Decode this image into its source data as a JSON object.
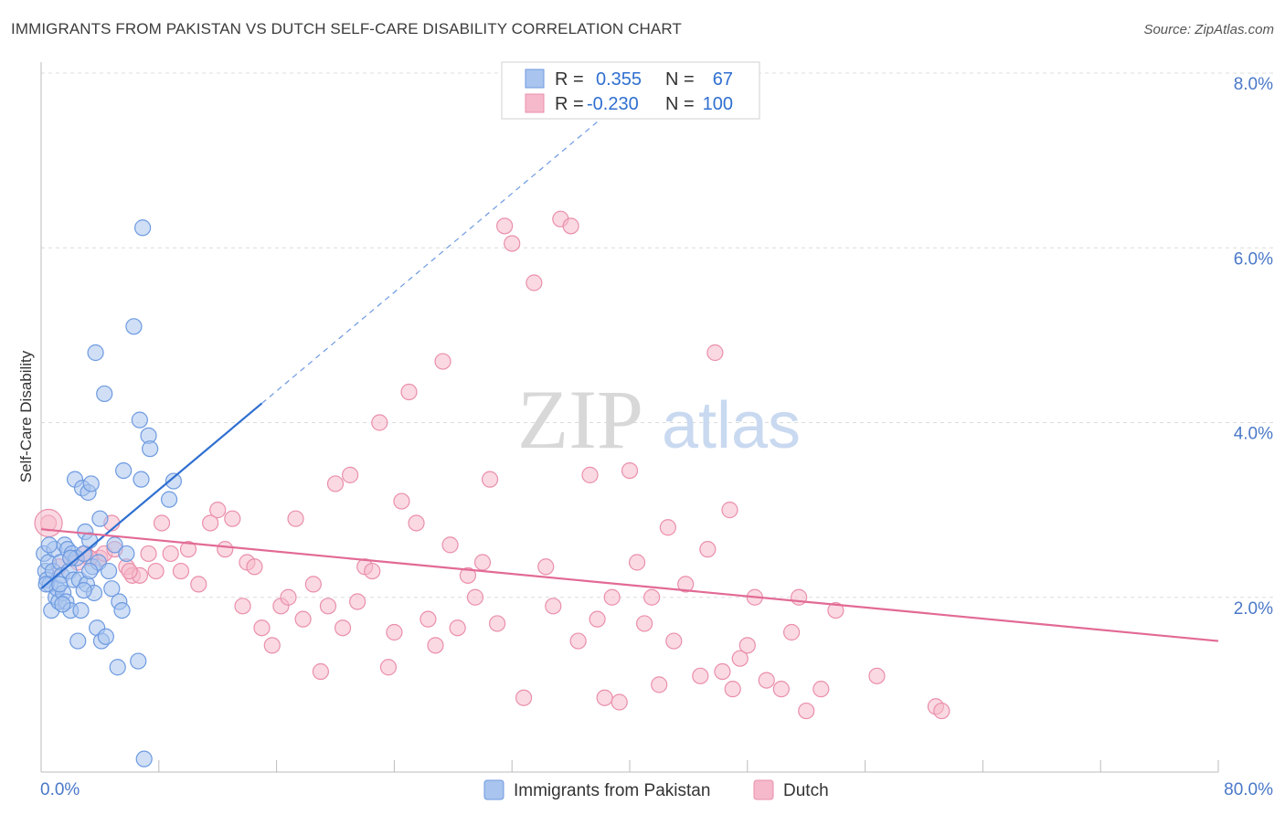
{
  "title": "IMMIGRANTS FROM PAKISTAN VS DUTCH SELF-CARE DISABILITY CORRELATION CHART",
  "source": "Source: ZipAtlas.com",
  "watermark": {
    "zip": "ZIP",
    "atlas": "atlas"
  },
  "colors": {
    "blue_fill": "#a9c4ee",
    "blue_stroke": "#6d9ae0",
    "blue_line": "#2f6fd0",
    "pink_fill": "#f5b9cb",
    "pink_stroke": "#ea8fab",
    "pink_line": "#e26a95",
    "grid": "#dcdcdc",
    "tick_label": "#4a78c8"
  },
  "legend": {
    "rows": [
      {
        "r_label": "R =",
        "r_value": "0.355",
        "n_label": "N =",
        "n_value": "67"
      },
      {
        "r_label": "R =",
        "r_value": "-0.230",
        "n_label": "N =",
        "n_value": "100"
      }
    ]
  },
  "chart_data": {
    "type": "scatter",
    "xlabel": "",
    "ylabel": "Self-Care Disability",
    "xlim": [
      0,
      80
    ],
    "ylim": [
      0,
      8
    ],
    "x_tick_labels": [
      "0.0%",
      "80.0%"
    ],
    "y_ticks": [
      2,
      4,
      6,
      8
    ],
    "y_tick_labels": [
      "2.0%",
      "4.0%",
      "6.0%",
      "8.0%"
    ],
    "grid": true,
    "series": [
      {
        "name": "Immigrants from Pakistan",
        "color": "blue",
        "trend": {
          "x0": 0,
          "y0": 2.1,
          "x1": 15,
          "y1": 4.22,
          "dashed_to_x": 40
        },
        "points": [
          [
            0.2,
            2.5
          ],
          [
            0.3,
            2.3
          ],
          [
            0.4,
            2.2
          ],
          [
            0.5,
            2.4
          ],
          [
            0.6,
            2.15
          ],
          [
            0.7,
            1.85
          ],
          [
            0.8,
            2.3
          ],
          [
            0.9,
            2.55
          ],
          [
            1.0,
            2.0
          ],
          [
            1.1,
            2.1
          ],
          [
            1.2,
            1.95
          ],
          [
            1.3,
            2.4
          ],
          [
            1.4,
            2.25
          ],
          [
            1.5,
            2.05
          ],
          [
            1.6,
            2.6
          ],
          [
            1.7,
            1.95
          ],
          [
            1.8,
            2.55
          ],
          [
            1.9,
            2.3
          ],
          [
            2.0,
            1.85
          ],
          [
            2.1,
            2.5
          ],
          [
            2.2,
            2.2
          ],
          [
            2.3,
            3.35
          ],
          [
            2.4,
            2.45
          ],
          [
            2.5,
            1.5
          ],
          [
            2.6,
            2.2
          ],
          [
            2.7,
            1.85
          ],
          [
            2.8,
            3.25
          ],
          [
            2.9,
            2.5
          ],
          [
            3.0,
            2.75
          ],
          [
            3.1,
            2.15
          ],
          [
            3.2,
            3.2
          ],
          [
            3.3,
            2.65
          ],
          [
            3.4,
            3.3
          ],
          [
            3.5,
            2.35
          ],
          [
            3.6,
            2.05
          ],
          [
            3.7,
            4.8
          ],
          [
            3.8,
            1.65
          ],
          [
            3.9,
            2.4
          ],
          [
            4.0,
            2.9
          ],
          [
            4.1,
            1.5
          ],
          [
            4.3,
            4.33
          ],
          [
            4.4,
            1.55
          ],
          [
            4.6,
            2.3
          ],
          [
            4.8,
            2.1
          ],
          [
            5.0,
            2.6
          ],
          [
            5.2,
            1.2
          ],
          [
            5.3,
            1.95
          ],
          [
            5.5,
            1.85
          ],
          [
            5.6,
            3.45
          ],
          [
            5.8,
            2.5
          ],
          [
            6.3,
            5.1
          ],
          [
            6.6,
            1.27
          ],
          [
            6.7,
            4.03
          ],
          [
            6.8,
            3.35
          ],
          [
            6.9,
            6.23
          ],
          [
            7.0,
            0.15
          ],
          [
            7.3,
            3.85
          ],
          [
            7.4,
            3.7
          ],
          [
            8.7,
            3.12
          ],
          [
            9.0,
            3.33
          ],
          [
            0.35,
            2.15
          ],
          [
            1.25,
            2.15
          ],
          [
            2.0,
            2.45
          ],
          [
            2.9,
            2.08
          ],
          [
            0.55,
            2.6
          ],
          [
            1.45,
            1.92
          ],
          [
            3.3,
            2.3
          ]
        ]
      },
      {
        "name": "Dutch",
        "color": "pink",
        "trend": {
          "x0": 0,
          "y0": 2.78,
          "x1": 80,
          "y1": 1.5
        },
        "points": [
          [
            0.5,
            2.85
          ],
          [
            1.2,
            2.35
          ],
          [
            2.0,
            2.45
          ],
          [
            2.5,
            2.4
          ],
          [
            3.0,
            2.5
          ],
          [
            4.0,
            2.45
          ],
          [
            4.3,
            2.5
          ],
          [
            4.8,
            2.85
          ],
          [
            5.0,
            2.55
          ],
          [
            5.8,
            2.35
          ],
          [
            6.2,
            2.25
          ],
          [
            6.7,
            2.25
          ],
          [
            7.3,
            2.5
          ],
          [
            7.8,
            2.3
          ],
          [
            8.2,
            2.85
          ],
          [
            8.8,
            2.5
          ],
          [
            9.5,
            2.3
          ],
          [
            10.0,
            2.55
          ],
          [
            10.7,
            2.15
          ],
          [
            11.5,
            2.85
          ],
          [
            12.0,
            3.0
          ],
          [
            12.5,
            2.55
          ],
          [
            13.0,
            2.9
          ],
          [
            13.7,
            1.9
          ],
          [
            14.0,
            2.4
          ],
          [
            14.5,
            2.35
          ],
          [
            15.0,
            1.65
          ],
          [
            15.7,
            1.45
          ],
          [
            16.3,
            1.9
          ],
          [
            16.8,
            2.0
          ],
          [
            17.3,
            2.9
          ],
          [
            17.8,
            1.75
          ],
          [
            18.5,
            2.15
          ],
          [
            19.0,
            1.15
          ],
          [
            19.5,
            1.9
          ],
          [
            20.0,
            3.3
          ],
          [
            20.5,
            1.65
          ],
          [
            21.0,
            3.4
          ],
          [
            21.5,
            1.95
          ],
          [
            22.0,
            2.35
          ],
          [
            22.5,
            2.3
          ],
          [
            23.0,
            4.0
          ],
          [
            23.6,
            1.2
          ],
          [
            24.0,
            1.6
          ],
          [
            24.5,
            3.1
          ],
          [
            25.0,
            4.35
          ],
          [
            25.5,
            2.85
          ],
          [
            26.3,
            1.75
          ],
          [
            26.8,
            1.45
          ],
          [
            27.3,
            4.7
          ],
          [
            27.8,
            2.6
          ],
          [
            28.3,
            1.65
          ],
          [
            29.0,
            2.25
          ],
          [
            29.5,
            2.0
          ],
          [
            30.0,
            2.4
          ],
          [
            30.5,
            3.35
          ],
          [
            31.0,
            1.7
          ],
          [
            31.5,
            6.25
          ],
          [
            32.0,
            6.05
          ],
          [
            32.8,
            0.85
          ],
          [
            33.5,
            5.6
          ],
          [
            34.3,
            2.35
          ],
          [
            34.8,
            1.9
          ],
          [
            35.3,
            6.33
          ],
          [
            36.0,
            6.25
          ],
          [
            36.5,
            1.5
          ],
          [
            37.3,
            3.4
          ],
          [
            37.8,
            1.75
          ],
          [
            38.3,
            0.85
          ],
          [
            38.8,
            2.0
          ],
          [
            39.3,
            0.8
          ],
          [
            40.0,
            3.45
          ],
          [
            40.5,
            2.4
          ],
          [
            41.0,
            1.7
          ],
          [
            41.5,
            2.0
          ],
          [
            42.0,
            1.0
          ],
          [
            42.6,
            2.8
          ],
          [
            43.0,
            1.5
          ],
          [
            43.8,
            2.15
          ],
          [
            44.8,
            1.1
          ],
          [
            45.3,
            2.55
          ],
          [
            45.8,
            4.8
          ],
          [
            46.3,
            1.15
          ],
          [
            47.0,
            0.95
          ],
          [
            47.5,
            1.3
          ],
          [
            48.0,
            1.45
          ],
          [
            48.5,
            2.0
          ],
          [
            49.3,
            1.05
          ],
          [
            50.3,
            0.95
          ],
          [
            51.0,
            1.6
          ],
          [
            51.5,
            2.0
          ],
          [
            52.0,
            0.7
          ],
          [
            53.0,
            0.95
          ],
          [
            54.0,
            1.85
          ],
          [
            56.8,
            1.1
          ],
          [
            60.8,
            0.75
          ],
          [
            61.2,
            0.7
          ],
          [
            3.3,
            2.45
          ],
          [
            6.0,
            2.3
          ],
          [
            46.8,
            3.0
          ]
        ]
      }
    ]
  },
  "bottom_legend": {
    "items": [
      {
        "label": "Immigrants from Pakistan"
      },
      {
        "label": "Dutch"
      }
    ]
  }
}
